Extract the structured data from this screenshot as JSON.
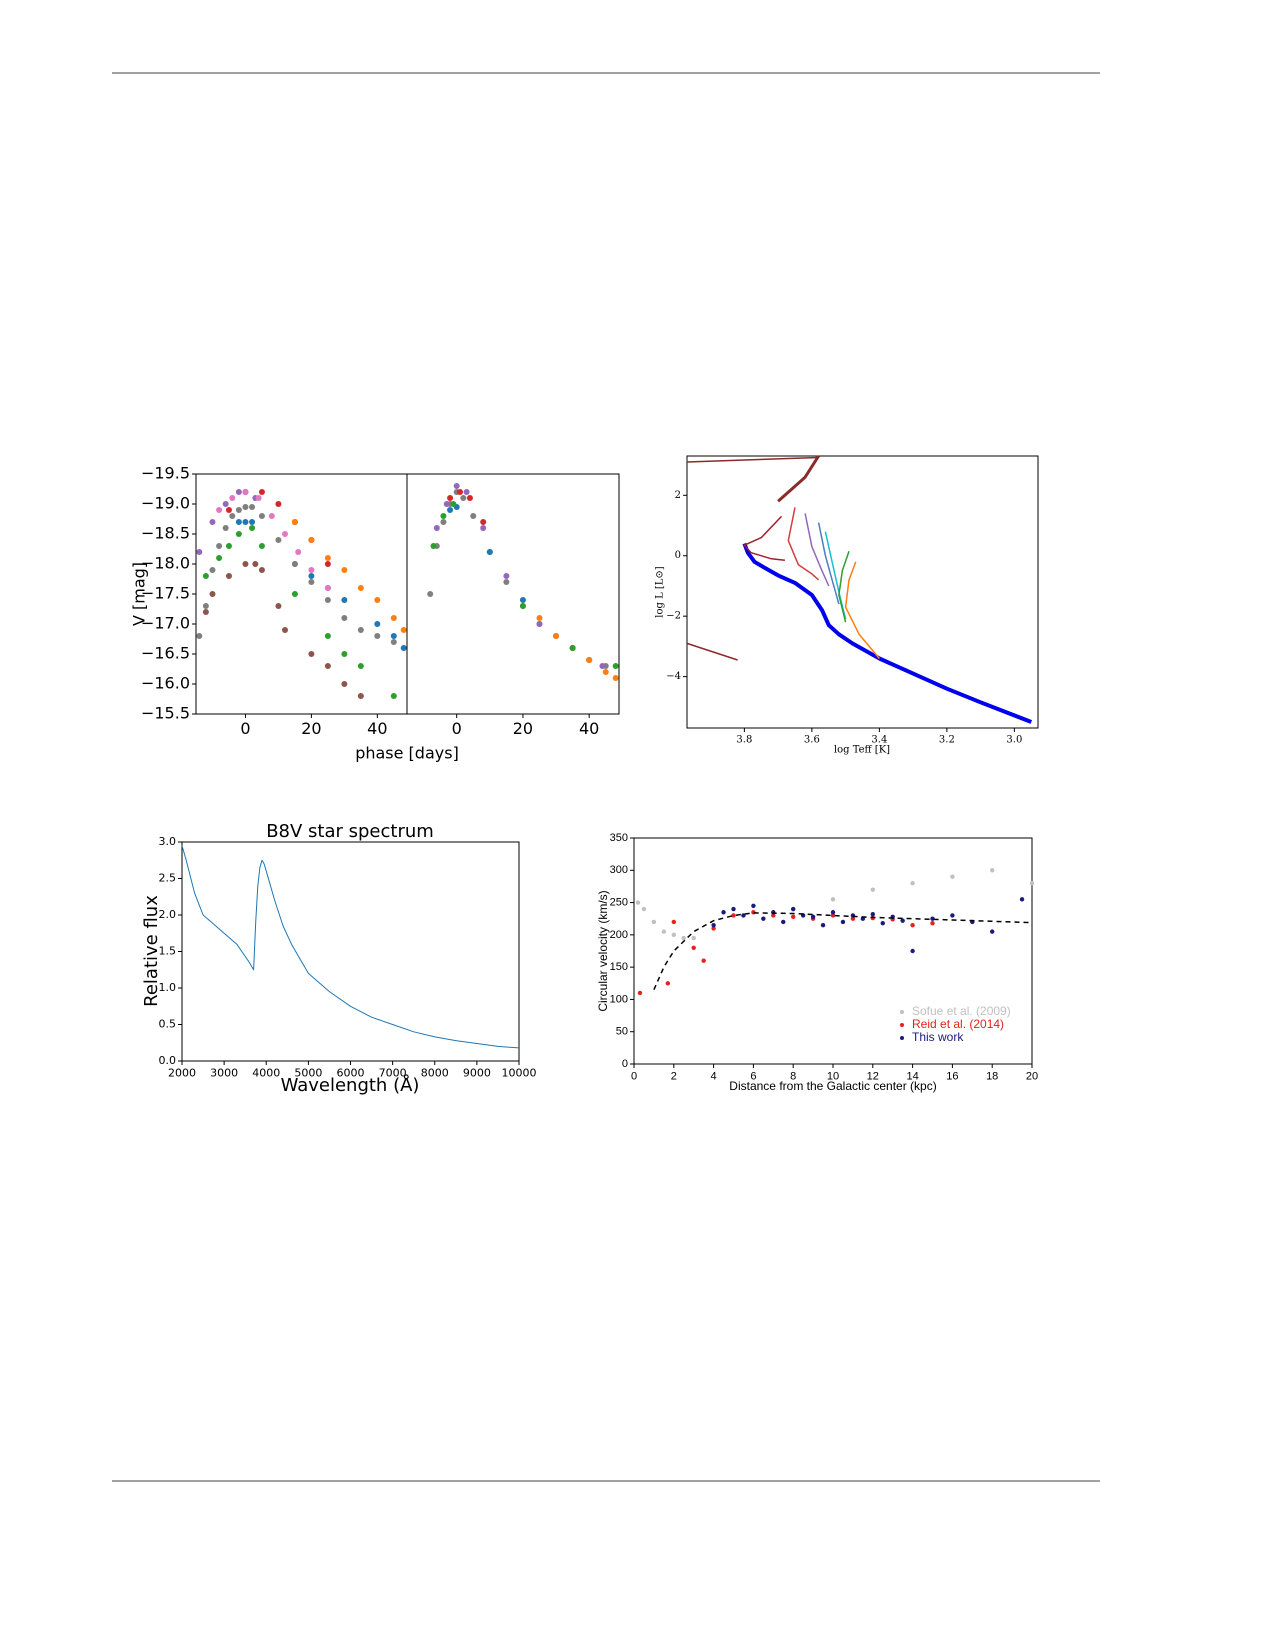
{
  "chart_data": [
    {
      "type": "scatter",
      "ylabel": "V [mag]",
      "xlabel": "phase [days]",
      "xlim": [
        -15,
        49
      ],
      "ylim": [
        -15.5,
        -19.5
      ],
      "xticks": [
        0,
        20,
        40
      ],
      "yticks": [
        {
          "value": -19.5,
          "label": "−19.5"
        },
        {
          "value": -19,
          "label": "−19.0"
        },
        {
          "value": -18.5,
          "label": "−18.5"
        },
        {
          "value": -18,
          "label": "−18.0"
        },
        {
          "value": -17.5,
          "label": "−17.5"
        },
        {
          "value": -17,
          "label": "−17.0"
        },
        {
          "value": -16.5,
          "label": "−16.5"
        },
        {
          "value": -16,
          "label": "−16.0"
        },
        {
          "value": -15.5,
          "label": "−15.5"
        }
      ],
      "series": [
        {
          "color": "#d62728",
          "x": [
            -5,
            0,
            5,
            10,
            15,
            20,
            25
          ],
          "values": [
            -18.9,
            -19.2,
            -19.2,
            -19.0,
            -18.7,
            -18.4,
            -18.0
          ]
        },
        {
          "color": "#ff7f0e",
          "x": [
            15,
            20,
            25,
            30,
            35,
            40,
            45,
            48
          ],
          "values": [
            -18.7,
            -18.4,
            -18.1,
            -17.9,
            -17.6,
            -17.4,
            -17.1,
            -16.9
          ]
        },
        {
          "color": "#1f77b4",
          "x": [
            -2,
            0,
            2,
            15,
            20,
            25,
            30,
            40,
            45,
            48
          ],
          "values": [
            -18.7,
            -18.7,
            -18.7,
            -18.0,
            -17.8,
            -17.6,
            -17.4,
            -17.0,
            -16.8,
            -16.6
          ]
        },
        {
          "color": "#2ca02c",
          "x": [
            -12,
            -8,
            -5,
            -2,
            2,
            5,
            15,
            25,
            30,
            35,
            45
          ],
          "values": [
            -17.8,
            -18.1,
            -18.3,
            -18.5,
            -18.6,
            -18.3,
            -17.5,
            -16.8,
            -16.5,
            -16.3,
            -15.8
          ]
        },
        {
          "color": "#8c564b",
          "x": [
            -12,
            -10,
            -5,
            0,
            3,
            5,
            10,
            12,
            20,
            25,
            30,
            35
          ],
          "values": [
            -17.2,
            -17.5,
            -17.8,
            -18.0,
            -18.0,
            -17.9,
            -17.3,
            -16.9,
            -16.5,
            -16.3,
            -16.0,
            -15.8
          ]
        },
        {
          "color": "#9467bd",
          "x": [
            -14,
            -10,
            -6,
            -2,
            0,
            3
          ],
          "values": [
            -18.2,
            -18.7,
            -19.0,
            -19.2,
            -19.2,
            -19.1
          ]
        },
        {
          "color": "#e377c2",
          "x": [
            -8,
            -4,
            0,
            4,
            8,
            12,
            16,
            20,
            25
          ],
          "values": [
            -18.9,
            -19.1,
            -19.2,
            -19.1,
            -18.8,
            -18.5,
            -18.2,
            -17.9,
            -17.6
          ]
        },
        {
          "color": "#7f7f7f",
          "x": [
            -14,
            -12,
            -10,
            -8,
            -6,
            -4,
            -2,
            0,
            2,
            5,
            10,
            15,
            20,
            25,
            30,
            35,
            40,
            45
          ],
          "values": [
            -16.8,
            -17.3,
            -17.9,
            -18.3,
            -18.6,
            -18.8,
            -18.9,
            -18.95,
            -18.95,
            -18.8,
            -18.4,
            -18.0,
            -17.7,
            -17.4,
            -17.1,
            -16.9,
            -16.8,
            -16.7
          ]
        }
      ]
    },
    {
      "type": "scatter",
      "xlim": [
        -15,
        49
      ],
      "ylim": [
        -15.5,
        -19.5
      ],
      "xticks": [
        0,
        20,
        40
      ],
      "series": [
        {
          "color": "#7f7f7f",
          "x": [
            -8,
            -6,
            -4,
            -2,
            0,
            2,
            5,
            10,
            15,
            20,
            25,
            30,
            35,
            40,
            45
          ],
          "values": [
            -17.5,
            -18.3,
            -18.7,
            -19.0,
            -19.2,
            -19.1,
            -18.8,
            -18.2,
            -17.7,
            -17.3,
            -17.0,
            -16.8,
            -16.6,
            -16.4,
            -16.3
          ]
        },
        {
          "color": "#9467bd",
          "x": [
            -6,
            -3,
            0,
            3,
            8,
            15,
            25,
            35,
            44
          ],
          "values": [
            -18.6,
            -19.0,
            -19.3,
            -19.2,
            -18.6,
            -17.8,
            -17.0,
            -16.6,
            -16.3
          ]
        },
        {
          "color": "#1f77b4",
          "x": [
            -2,
            0,
            10,
            20,
            30,
            40
          ],
          "values": [
            -18.9,
            -18.95,
            -18.2,
            -17.4,
            -16.8,
            -16.4
          ]
        },
        {
          "color": "#ff7f0e",
          "x": [
            25,
            30,
            35,
            40,
            45,
            48
          ],
          "values": [
            -17.1,
            -16.8,
            -16.6,
            -16.4,
            -16.2,
            -16.1
          ]
        },
        {
          "color": "#2ca02c",
          "x": [
            -7,
            -4,
            -1,
            20,
            35,
            48
          ],
          "values": [
            -18.3,
            -18.8,
            -19.0,
            -17.3,
            -16.6,
            -16.3
          ]
        },
        {
          "color": "#d62728",
          "x": [
            -2,
            1,
            4,
            8
          ],
          "values": [
            -19.1,
            -19.2,
            -19.1,
            -18.7
          ]
        }
      ]
    },
    {
      "type": "line",
      "ylabel": "log L [L⊙]",
      "xlabel": "log Teff [K]",
      "xlim": [
        3.97,
        2.93
      ],
      "ylim": [
        -5.7,
        3.3
      ],
      "xticks": [
        3.8,
        3.6,
        3.4,
        3.2,
        {
          "value": 3,
          "label": "3.0"
        }
      ],
      "yticks": [
        {
          "value": -4,
          "label": "−4"
        },
        {
          "value": -2,
          "label": "−2"
        },
        0,
        2
      ],
      "series": [
        {
          "color": "#0000ee",
          "linewidth": 4,
          "x": [
            3.8,
            3.79,
            3.77,
            3.74,
            3.7,
            3.65,
            3.6,
            3.57,
            3.55,
            3.52,
            3.48,
            3.4,
            3.3,
            3.2,
            3.1,
            2.95
          ],
          "values": [
            0.4,
            0.1,
            -0.2,
            -0.4,
            -0.65,
            -0.9,
            -1.3,
            -1.8,
            -2.3,
            -2.6,
            -2.9,
            -3.4,
            -3.9,
            -4.4,
            -4.85,
            -5.5
          ]
        },
        {
          "color": "#8b2a2a",
          "linewidth": 1.5,
          "x": [
            3.97,
            3.58
          ],
          "values": [
            3.1,
            3.25
          ]
        },
        {
          "color": "#8b2a2a",
          "linewidth": 3,
          "x": [
            3.7,
            3.62,
            3.58
          ],
          "values": [
            1.8,
            2.6,
            3.3
          ]
        },
        {
          "color": "#8b2a2a",
          "linewidth": 1.5,
          "x": [
            3.97,
            3.82
          ],
          "values": [
            -2.9,
            -3.45
          ]
        },
        {
          "color": "#a02030",
          "linewidth": 1.5,
          "x": [
            3.69,
            3.75,
            3.8,
            3.78,
            3.72,
            3.68
          ],
          "values": [
            1.3,
            0.6,
            0.35,
            0.1,
            -0.1,
            -0.15
          ]
        },
        {
          "color": "#d04040",
          "linewidth": 1.5,
          "x": [
            3.65,
            3.67,
            3.64,
            3.6,
            3.58
          ],
          "values": [
            1.6,
            0.5,
            -0.3,
            -0.6,
            -0.8
          ]
        },
        {
          "color": "#9467bd",
          "linewidth": 1.5,
          "x": [
            3.62,
            3.6,
            3.57,
            3.55
          ],
          "values": [
            1.4,
            0.3,
            -0.5,
            -1.0
          ]
        },
        {
          "color": "#4a7fc0",
          "linewidth": 1.5,
          "x": [
            3.58,
            3.56,
            3.54,
            3.52
          ],
          "values": [
            1.1,
            0,
            -0.8,
            -1.6
          ]
        },
        {
          "color": "#17becf",
          "linewidth": 1.5,
          "x": [
            3.56,
            3.54,
            3.52,
            3.5
          ],
          "values": [
            0.8,
            -0.2,
            -1.2,
            -2.1
          ]
        },
        {
          "color": "#2ca02c",
          "linewidth": 1.5,
          "x": [
            3.49,
            3.51,
            3.52,
            3.5
          ],
          "values": [
            0.15,
            -0.5,
            -1.3,
            -2.2
          ]
        },
        {
          "color": "#ff7f0e",
          "linewidth": 1.5,
          "x": [
            3.47,
            3.49,
            3.5,
            3.46,
            3.4
          ],
          "values": [
            -0.2,
            -0.8,
            -1.7,
            -2.6,
            -3.4
          ]
        }
      ]
    },
    {
      "type": "line",
      "title": "B8V star spectrum",
      "xlabel": "Wavelength (Å)",
      "ylabel": "Relative flux",
      "xlim": [
        2000,
        10000
      ],
      "ylim": [
        0,
        3
      ],
      "xticks": [
        2000,
        3000,
        4000,
        5000,
        6000,
        7000,
        8000,
        9000,
        10000
      ],
      "yticks": [
        {
          "value": 0,
          "label": "0.0"
        },
        0.5,
        {
          "value": 1,
          "label": "1.0"
        },
        1.5,
        {
          "value": 2,
          "label": "2.0"
        },
        2.5,
        {
          "value": 3,
          "label": "3.0"
        }
      ],
      "series": [
        {
          "color": "#1f77b4",
          "linewidth": 1,
          "x": [
            2000,
            2100,
            2300,
            2500,
            2700,
            3000,
            3300,
            3600,
            3700,
            3750,
            3800,
            3850,
            3900,
            3950,
            4000,
            4100,
            4200,
            4400,
            4600,
            4800,
            5000,
            5500,
            6000,
            6500,
            7000,
            7500,
            8000,
            8500,
            9000,
            9500,
            10000
          ],
          "values": [
            2.95,
            2.75,
            2.3,
            2.0,
            1.9,
            1.75,
            1.6,
            1.35,
            1.25,
            1.9,
            2.4,
            2.65,
            2.75,
            2.7,
            2.6,
            2.4,
            2.2,
            1.85,
            1.6,
            1.4,
            1.2,
            0.95,
            0.75,
            0.6,
            0.5,
            0.4,
            0.33,
            0.28,
            0.24,
            0.2,
            0.18
          ]
        }
      ]
    },
    {
      "type": "scatter",
      "xlabel": "Distance from the Galactic center (kpc)",
      "ylabel": "Circular velocity (km/s)",
      "xlim": [
        0,
        20
      ],
      "ylim": [
        0,
        350
      ],
      "xticks": [
        0,
        2,
        4,
        6,
        8,
        10,
        12,
        14,
        16,
        18,
        20
      ],
      "yticks": [
        0,
        50,
        100,
        150,
        200,
        250,
        300,
        350
      ],
      "legend": "lower right",
      "series": [
        {
          "name": "Sofue et al. (2009)",
          "color": "#c0c0c0",
          "x": [
            0.2,
            0.5,
            1,
            1.5,
            2,
            2.5,
            3,
            8,
            10,
            12,
            14,
            16,
            18,
            20
          ],
          "values": [
            250,
            240,
            220,
            205,
            200,
            195,
            195,
            240,
            255,
            270,
            280,
            290,
            300,
            280
          ]
        },
        {
          "name": "Reid et al. (2014)",
          "color": "#e8201c",
          "x": [
            0.3,
            1.7,
            2,
            3,
            3.5,
            4,
            5,
            6,
            7,
            8,
            9,
            10,
            11,
            12,
            13,
            14,
            15
          ],
          "values": [
            110,
            125,
            220,
            180,
            160,
            210,
            230,
            235,
            230,
            228,
            225,
            230,
            225,
            226,
            224,
            215,
            218
          ]
        },
        {
          "name": "This work",
          "color": "#1a1a80",
          "x": [
            4,
            4.5,
            5,
            5.5,
            6,
            6.5,
            7,
            7.5,
            8,
            8.5,
            9,
            9.5,
            10,
            10.5,
            11,
            11.5,
            12,
            12.5,
            13,
            13.5,
            14,
            15,
            16,
            17,
            18,
            19.5
          ],
          "values": [
            215,
            235,
            240,
            230,
            245,
            225,
            235,
            220,
            240,
            230,
            228,
            215,
            235,
            220,
            230,
            225,
            232,
            218,
            228,
            222,
            175,
            225,
            230,
            220,
            205,
            255
          ]
        },
        {
          "type": "line",
          "style": "dashed",
          "color": "#000000",
          "linewidth": 1.5,
          "x": [
            1,
            1.5,
            2,
            3,
            4,
            5,
            6,
            8,
            10,
            12,
            14,
            16,
            18,
            20
          ],
          "values": [
            115,
            150,
            175,
            205,
            222,
            230,
            234,
            233,
            230,
            227,
            225,
            223,
            221,
            219
          ]
        }
      ]
    }
  ]
}
